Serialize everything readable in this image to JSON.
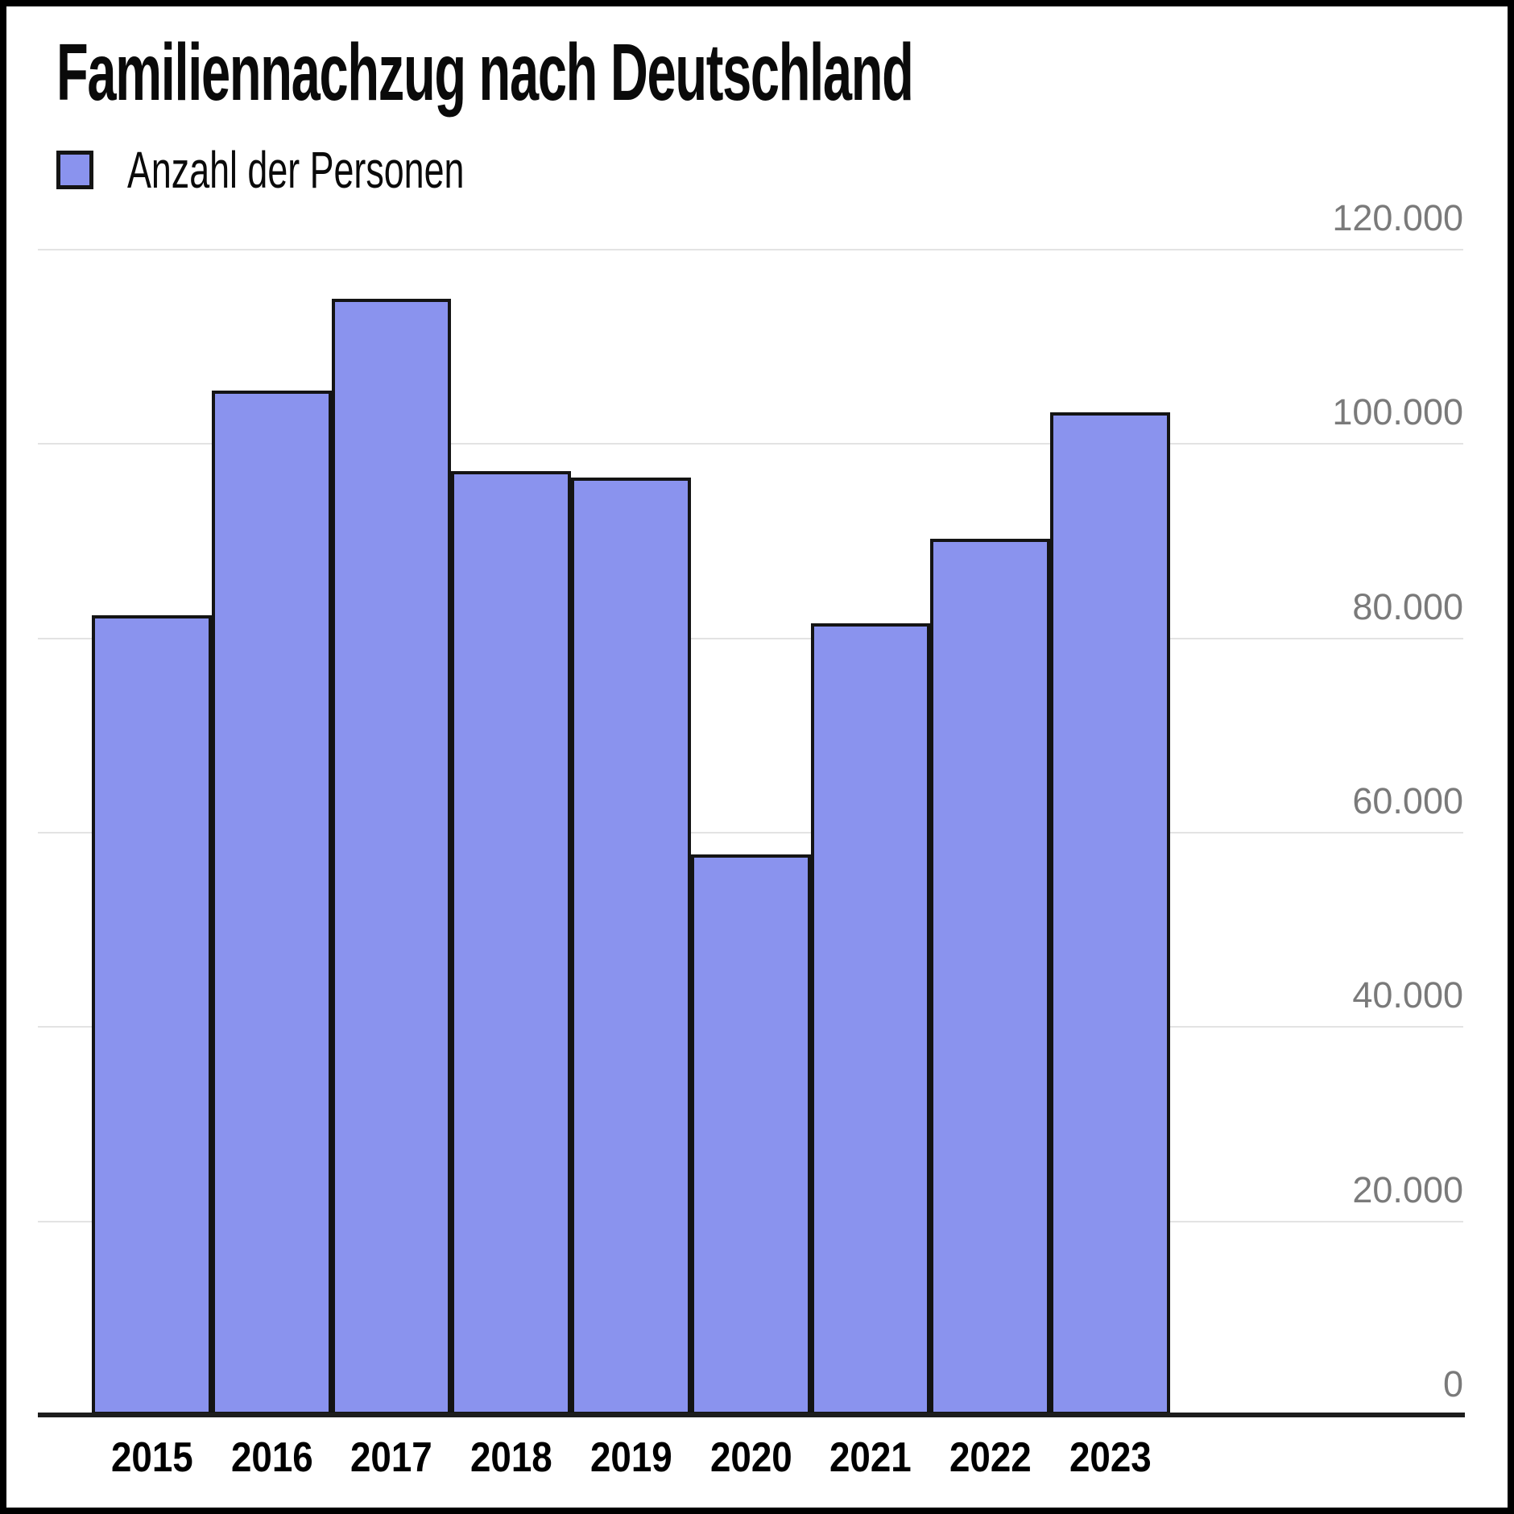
{
  "chart": {
    "title": "Familiennachzug nach Deutschland",
    "legend": {
      "label": "Anzahl der Personen"
    }
  },
  "chart_data": {
    "type": "bar",
    "title": "Familiennachzug nach Deutschland",
    "legend_entries": [
      "Anzahl der Personen"
    ],
    "legend_position": "top-left",
    "categories": [
      "2015",
      "2016",
      "2017",
      "2018",
      "2019",
      "2020",
      "2021",
      "2022",
      "2023"
    ],
    "series": [
      {
        "name": "Anzahl der Personen",
        "values": [
          82300,
          105400,
          114900,
          97100,
          96500,
          57700,
          81500,
          90200,
          103200
        ]
      }
    ],
    "xlabel": "",
    "ylabel": "",
    "ylim": [
      0,
      120000
    ],
    "grid": true,
    "yticks": [
      {
        "value": 120000,
        "label": "120.000"
      },
      {
        "value": 100000,
        "label": "100.000"
      },
      {
        "value": 80000,
        "label": "80.000"
      },
      {
        "value": 60000,
        "label": "60.000"
      },
      {
        "value": 40000,
        "label": "40.000"
      },
      {
        "value": 20000,
        "label": "20.000"
      },
      {
        "value": 0,
        "label": "0"
      }
    ],
    "colors": {
      "bar_fill": "#8A93EE",
      "bar_stroke": "#141414",
      "gridline": "#e3e3e3",
      "axis_line": "#1d1d1d",
      "y_tick_text": "#7a7a7a",
      "x_tick_text": "#000000",
      "frame_border": "#000000"
    }
  }
}
